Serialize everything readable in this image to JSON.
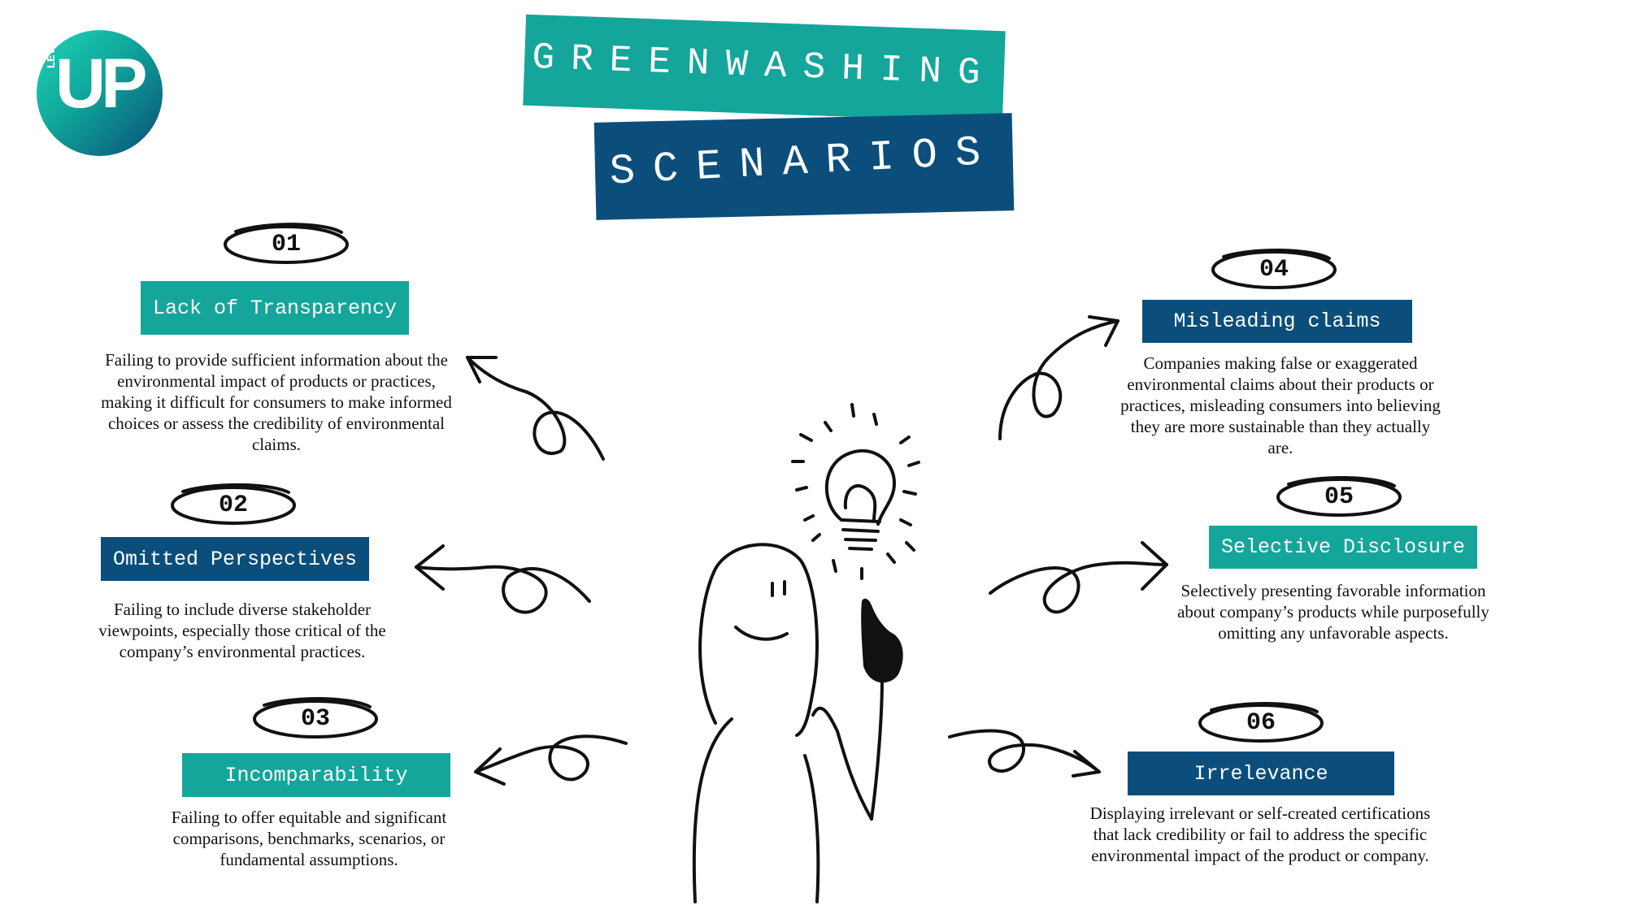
{
  "logo": {
    "main": "UP",
    "side": "LEVEL"
  },
  "title": {
    "line1": "GREENWASHING",
    "line2": "SCENARIOS"
  },
  "scenarios": [
    {
      "number": "01",
      "label": "Lack of Transparency",
      "description": "Failing to provide sufficient information about the environmental impact of products or practices, making it difficult for consumers to make informed choices or assess the credibility of environmental claims.",
      "color": "#14a69b"
    },
    {
      "number": "02",
      "label": "Omitted Perspectives",
      "description": "Failing to include diverse stakeholder viewpoints, especially those critical of the company’s environmental practices.",
      "color": "#0b4e7b"
    },
    {
      "number": "03",
      "label": "Incomparability",
      "description": "Failing to offer equitable and significant comparisons, benchmarks, scenarios, or fundamental assumptions.",
      "color": "#14a69b"
    },
    {
      "number": "04",
      "label": "Misleading claims",
      "description": "Companies making false or exaggerated environmental claims about their products or practices, misleading consumers into believing they are more sustainable than they actually are.",
      "color": "#0b4e7b"
    },
    {
      "number": "05",
      "label": "Selective Disclosure",
      "description": "Selectively presenting favorable information about company’s products while purposefully omitting any unfavorable aspects.",
      "color": "#14a69b"
    },
    {
      "number": "06",
      "label": "Irrelevance",
      "description": "Displaying irrelevant or self-created certifications that lack credibility or fail to address the specific environmental impact of the product or company.",
      "color": "#0b4e7b"
    }
  ]
}
